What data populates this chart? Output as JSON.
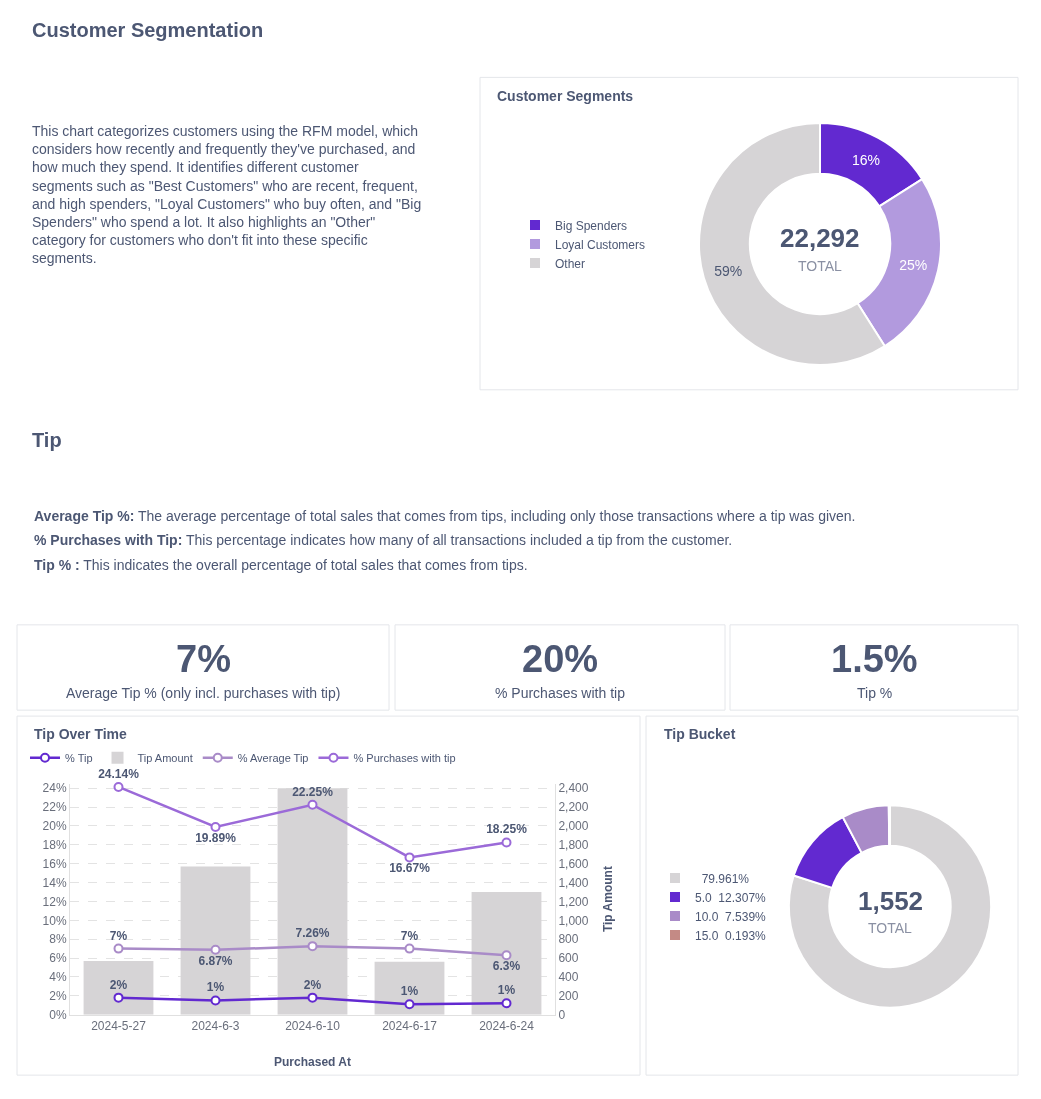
{
  "chart_data": [
    {
      "type": "other",
      "title": "Customer Segmentation",
      "annotations": [
        "This chart categorizes customers using the RFM model, which considers how recently and frequently they've purchased, and how much they spend. It identifies different customer segments such as \"Best Customers\" who are recent, frequent, and high spenders, \"Loyal Customers\" who buy often, and \"Big Spenders\" who spend a lot. It also highlights an \"Other\" category for customers who don't fit into these specific segments."
      ]
    },
    {
      "type": "donut",
      "title": "Customer Segments",
      "categories": [
        "Big Spenders",
        "Loyal Customers",
        "Other"
      ],
      "values": [
        16,
        25,
        59
      ],
      "colors": [
        "#6229d0",
        "#b29ade",
        "#d6d4d6"
      ],
      "value_labels": [
        "16%",
        "25%",
        "59%"
      ],
      "legend": "left",
      "annotations": [
        "22,292",
        "TOTAL"
      ]
    },
    {
      "type": "other",
      "title": "Tip",
      "annotations": [
        "Average Tip %: The average percentage of total sales that comes from tips, including only those transactions where a tip was given.",
        "% Purchases with Tip: This percentage indicates how many of all transactions included a tip from the customer.",
        "Tip % : This indicates the overall percentage of total sales that comes from tips."
      ]
    },
    {
      "type": "other",
      "title": "Average Tip % (only incl. purchases with tip)",
      "annotations": [
        "7%"
      ]
    },
    {
      "type": "other",
      "title": "% Purchases with tip",
      "annotations": [
        "20%"
      ]
    },
    {
      "type": "other",
      "title": "Tip %",
      "annotations": [
        "1.5%"
      ]
    },
    {
      "type": "line",
      "title": "Tip Over Time",
      "xlabel": "Purchased At",
      "y2label": "Tip Amount",
      "categories": [
        "2024-5-27",
        "2024-6-3",
        "2024-6-10",
        "2024-6-17",
        "2024-6-24"
      ],
      "series": [
        {
          "name": "% Tip",
          "type": "line",
          "color": "#6229d0",
          "values": [
            1.8,
            1.5,
            1.8,
            1.1,
            1.2
          ],
          "value_labels": [
            "2%",
            "1%",
            "2%",
            "1%",
            "1%"
          ]
        },
        {
          "name": "Tip Amount",
          "type": "bar",
          "axis": "y2",
          "color": "#d6d4d6",
          "values": [
            570,
            1570,
            2400,
            560,
            1300
          ]
        },
        {
          "name": "% Average Tip",
          "type": "line",
          "color": "#a98bc8",
          "values": [
            7,
            6.87,
            7.26,
            7,
            6.3
          ],
          "value_labels": [
            "7%",
            "6.87%",
            "7.26%",
            "7%",
            "6.3%"
          ]
        },
        {
          "name": "% Purchases with tip",
          "type": "line",
          "color": "#9b6ad8",
          "values": [
            24.14,
            19.89,
            22.25,
            16.67,
            18.25
          ],
          "value_labels": [
            "24.14%",
            "19.89%",
            "22.25%",
            "16.67%",
            "18.25%"
          ]
        }
      ],
      "ylim": [
        0,
        24.5
      ],
      "yticks": [
        {
          "value": 0,
          "label": "0%"
        },
        {
          "value": 2,
          "label": "2%"
        },
        {
          "value": 4,
          "label": "4%"
        },
        {
          "value": 6,
          "label": "6%"
        },
        {
          "value": 8,
          "label": "8%"
        },
        {
          "value": 10,
          "label": "10%"
        },
        {
          "value": 12,
          "label": "12%"
        },
        {
          "value": 14,
          "label": "14%"
        },
        {
          "value": 16,
          "label": "16%"
        },
        {
          "value": 18,
          "label": "18%"
        },
        {
          "value": 20,
          "label": "20%"
        },
        {
          "value": 22,
          "label": "22%"
        },
        {
          "value": 24,
          "label": "24%"
        }
      ],
      "y2lim": [
        0,
        2450
      ],
      "y2ticks": [
        0,
        200,
        400,
        600,
        800,
        {
          "value": 1000,
          "label": "1,000"
        },
        {
          "value": 1200,
          "label": "1,200"
        },
        {
          "value": 1400,
          "label": "1,400"
        },
        {
          "value": 1600,
          "label": "1,600"
        },
        {
          "value": 1800,
          "label": "1,800"
        },
        {
          "value": 2000,
          "label": "2,000"
        },
        {
          "value": 2200,
          "label": "2,200"
        },
        {
          "value": 2400,
          "label": "2,400"
        }
      ],
      "grid": "y",
      "legend": "top left",
      "marker": "circle",
      "line_style": "solid"
    },
    {
      "type": "donut",
      "title": "Tip Bucket",
      "categories": [
        null,
        "5.0",
        "10.0",
        "15.0"
      ],
      "values": [
        79.961,
        12.307,
        7.539,
        0.193
      ],
      "colors": [
        "#d6d4d6",
        "#6229d0",
        "#a98bc8",
        "#c48a85"
      ],
      "value_labels": [
        "79.961%",
        "12.307%",
        "7.539%",
        "0.193%"
      ],
      "legend": "left",
      "annotations": [
        "1,552",
        "TOTAL"
      ]
    }
  ]
}
